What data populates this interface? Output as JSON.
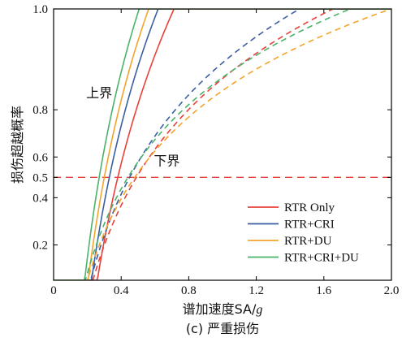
{
  "chart_data": {
    "type": "line",
    "title": "",
    "subtitle": "(c) 严重损伤",
    "xlabel_prefix": "谱加速度SA/",
    "xlabel_var": "g",
    "ylabel": "损伤超越概率",
    "xlim": [
      0,
      2.0
    ],
    "ylim_display": [
      0.1,
      1.0
    ],
    "y_scale": "normal-probability",
    "x_ticks": [
      0,
      0.4,
      0.8,
      1.2,
      1.6,
      2.0
    ],
    "x_tick_labels": [
      "0",
      "0.4",
      "0.8",
      "1.2",
      "1.6",
      "2.0"
    ],
    "y_ticks": [
      0.2,
      0.4,
      0.5,
      0.6,
      0.8,
      1.0
    ],
    "y_tick_labels": [
      "0.2",
      "0.4",
      "0.5",
      "0.6",
      "0.8",
      "1.0"
    ],
    "highlight_tick": 0.5,
    "reference_line": {
      "y": 0.5,
      "color": "#e8413a",
      "style": "dashed"
    },
    "annotations": [
      {
        "text": "上界",
        "x": 0.27,
        "y": 0.84
      },
      {
        "text": "下界",
        "x": 0.67,
        "y": 0.56
      }
    ],
    "legend": {
      "position": "bottom-right"
    },
    "series": [
      {
        "name": "RTR Only",
        "color": "#e8413a",
        "upper": {
          "median": 0.38,
          "beta": 0.3
        },
        "lower": {
          "median": 0.49,
          "beta": 0.58
        }
      },
      {
        "name": "RTR+CRI",
        "color": "#3b5fa0",
        "upper": {
          "median": 0.33,
          "beta": 0.3
        },
        "lower": {
          "median": 0.45,
          "beta": 0.56
        }
      },
      {
        "name": "RTR+DU",
        "color": "#f2a42c",
        "upper": {
          "median": 0.3,
          "beta": 0.3
        },
        "lower": {
          "median": 0.48,
          "beta": 0.68
        }
      },
      {
        "name": "RTR+CRI+DU",
        "color": "#49b36a",
        "upper": {
          "median": 0.27,
          "beta": 0.3
        },
        "lower": {
          "median": 0.44,
          "beta": 0.66
        }
      }
    ]
  }
}
